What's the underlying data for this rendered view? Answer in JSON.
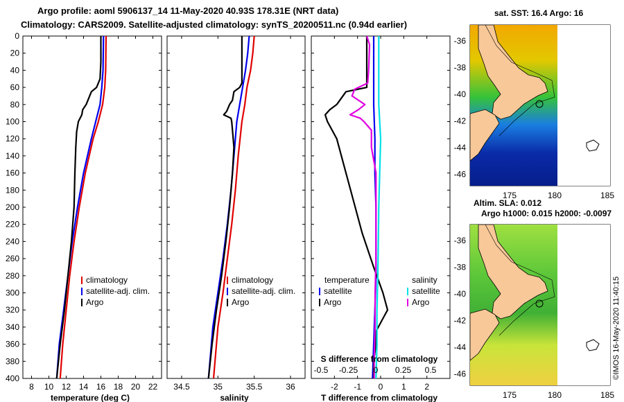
{
  "header": {
    "line1": "Argo profile: aoml 5906137_14 11-May-2020 40.93S 178.31E (NRT data)",
    "line2": "Climatology: CARS2009. Satellite-adjusted climatology: synTS_20200511.nc (0.94d earlier)"
  },
  "colors": {
    "climatology": "#e00000",
    "satellite": "#0000ee",
    "argo": "#000000",
    "sat_salinity": "#00e0e8",
    "argo_salinity": "#e000e0"
  },
  "depth_ticks": [
    "0",
    "20",
    "40",
    "60",
    "80",
    "100",
    "120",
    "140",
    "160",
    "180",
    "200",
    "220",
    "240",
    "260",
    "280",
    "300",
    "320",
    "340",
    "360",
    "380",
    "400"
  ],
  "chart_data": [
    {
      "type": "line",
      "name": "temperature",
      "xlabel": "temperature (deg C)",
      "ylabel": "depth",
      "xlim": [
        7,
        23
      ],
      "ylim": [
        400,
        0
      ],
      "xticks": [
        "8",
        "10",
        "12",
        "14",
        "16",
        "18",
        "20",
        "22"
      ],
      "legend": [
        "climatology",
        "satellite-adj. clim.",
        "Argo"
      ],
      "series": [
        {
          "name": "climatology",
          "color": "#e00000",
          "depth": [
            0,
            40,
            60,
            80,
            100,
            120,
            160,
            200,
            240,
            280,
            320,
            360,
            400
          ],
          "values": [
            16.6,
            16.55,
            16.45,
            16.2,
            15.7,
            15.1,
            14.2,
            13.5,
            12.9,
            12.4,
            12.0,
            11.6,
            11.3
          ]
        },
        {
          "name": "satellite-adj. clim.",
          "color": "#0000ee",
          "depth": [
            0,
            40,
            60,
            80,
            100,
            120,
            160,
            200,
            240,
            280,
            320,
            360,
            400
          ],
          "values": [
            16.3,
            16.25,
            16.1,
            15.9,
            15.4,
            14.9,
            14.0,
            13.3,
            12.7,
            12.2,
            11.7,
            11.2,
            10.9
          ]
        },
        {
          "name": "Argo",
          "color": "#000000",
          "depth": [
            0,
            30,
            50,
            60,
            65,
            80,
            86,
            92,
            100,
            112,
            130,
            160,
            200,
            240,
            280,
            320,
            360,
            400
          ],
          "values": [
            16.0,
            16.0,
            15.9,
            15.5,
            14.9,
            14.3,
            13.9,
            13.8,
            13.4,
            13.2,
            13.1,
            13.0,
            12.9,
            12.6,
            12.2,
            11.8,
            11.3,
            10.9
          ]
        }
      ]
    },
    {
      "type": "line",
      "name": "salinity",
      "xlabel": "salinity",
      "ylabel": "depth",
      "xlim": [
        34.3,
        36.2
      ],
      "ylim": [
        400,
        0
      ],
      "xticks": [
        "34.5",
        "35",
        "35.5",
        "36"
      ],
      "legend": [
        "climatology",
        "satellite-adj. clim.",
        "Argo"
      ],
      "series": [
        {
          "name": "climatology",
          "color": "#e00000",
          "depth": [
            0,
            20,
            40,
            60,
            80,
            100,
            140,
            180,
            220,
            260,
            300,
            340,
            380,
            400
          ],
          "values": [
            35.5,
            35.48,
            35.45,
            35.4,
            35.37,
            35.33,
            35.28,
            35.24,
            35.19,
            35.13,
            35.07,
            35.0,
            34.96,
            34.94
          ]
        },
        {
          "name": "satellite-adj. clim.",
          "color": "#0000ee",
          "depth": [
            0,
            20,
            40,
            60,
            80,
            100,
            140,
            180,
            220,
            260,
            300,
            340,
            380,
            400
          ],
          "values": [
            35.43,
            35.41,
            35.38,
            35.34,
            35.3,
            35.26,
            35.22,
            35.18,
            35.13,
            35.07,
            35.0,
            34.93,
            34.89,
            34.87
          ]
        },
        {
          "name": "Argo",
          "color": "#000000",
          "depth": [
            0,
            55,
            60,
            65,
            75,
            80,
            88,
            92,
            96,
            100,
            110,
            130,
            160,
            200,
            240,
            280,
            320,
            360,
            400
          ],
          "values": [
            35.33,
            35.33,
            35.3,
            35.22,
            35.2,
            35.16,
            35.12,
            35.08,
            35.18,
            35.19,
            35.2,
            35.22,
            35.2,
            35.16,
            35.11,
            35.05,
            34.98,
            34.92,
            34.87
          ]
        }
      ]
    },
    {
      "type": "line",
      "name": "difference from climatology",
      "xlabel": "T difference from climatology",
      "xlabel_top": "S difference from climatology",
      "ylabel": "depth",
      "xlim": [
        -3,
        3
      ],
      "ylim": [
        400,
        0
      ],
      "xticks": [
        "-2",
        "-1",
        "0",
        "1",
        "2"
      ],
      "xticks_s": [
        "-0.5",
        "-0.25",
        "0",
        "0.25",
        "0.5"
      ],
      "legend_left_title": "temperature",
      "legend_right_title": "salinity",
      "legend_left": [
        "satellite",
        "Argo"
      ],
      "legend_right": [
        "satellite",
        "Argo"
      ],
      "series": [
        {
          "name": "temperature satellite",
          "color": "#0000ee",
          "depth": [
            0,
            40,
            80,
            120,
            160,
            200,
            240,
            280,
            320,
            360,
            400
          ],
          "values": [
            -0.3,
            -0.3,
            -0.3,
            -0.25,
            -0.25,
            -0.2,
            -0.2,
            -0.2,
            -0.25,
            -0.3,
            -0.35
          ]
        },
        {
          "name": "temperature Argo",
          "color": "#000000",
          "depth": [
            0,
            60,
            65,
            80,
            86,
            92,
            100,
            120,
            150,
            190,
            230,
            270,
            300,
            320,
            330,
            345,
            360,
            380,
            400
          ],
          "values": [
            -0.6,
            -0.6,
            -1.5,
            -1.9,
            -2.2,
            -2.4,
            -2.3,
            -1.9,
            -1.6,
            -1.2,
            -0.8,
            -0.3,
            0.1,
            0.3,
            0.1,
            -0.2,
            -0.2,
            -0.3,
            -0.3
          ]
        },
        {
          "name": "salinity satellite",
          "color": "#00e0e8",
          "depth": [
            0,
            40,
            80,
            120,
            200,
            280,
            320,
            360,
            400
          ],
          "values": [
            -0.02,
            -0.02,
            -0.02,
            0.0,
            -0.02,
            -0.03,
            -0.04,
            -0.04,
            -0.05
          ]
        },
        {
          "name": "salinity Argo",
          "color": "#e000e0",
          "depth": [
            0,
            10,
            40,
            55,
            62,
            70,
            80,
            86,
            92,
            96,
            100,
            110,
            130,
            160,
            200,
            260,
            300,
            340,
            380,
            400
          ],
          "values": [
            -0.15,
            -0.12,
            -0.13,
            -0.14,
            -0.28,
            -0.31,
            -0.17,
            -0.24,
            -0.33,
            -0.22,
            -0.18,
            -0.1,
            -0.1,
            -0.05,
            -0.05,
            -0.05,
            -0.06,
            -0.06,
            -0.07,
            -0.07
          ]
        }
      ]
    }
  ],
  "maps": [
    {
      "title": "sat. SST: 16.4 Argo: 16",
      "xticks": [
        "175",
        "180",
        "185"
      ],
      "yticks": [
        "-36",
        "-38",
        "-40",
        "-42",
        "-44",
        "-46"
      ]
    },
    {
      "title": "Altim. SLA: 0.012",
      "subtitle": "Argo h1000: 0.015 h2000: -0.0097",
      "xticks": [
        "175",
        "180",
        "185"
      ],
      "yticks": [
        "-36",
        "-38",
        "-40",
        "-42",
        "-44",
        "-46"
      ]
    }
  ],
  "footer": {
    "credit": "©IMOS 16-May-2020 11:40:15"
  }
}
